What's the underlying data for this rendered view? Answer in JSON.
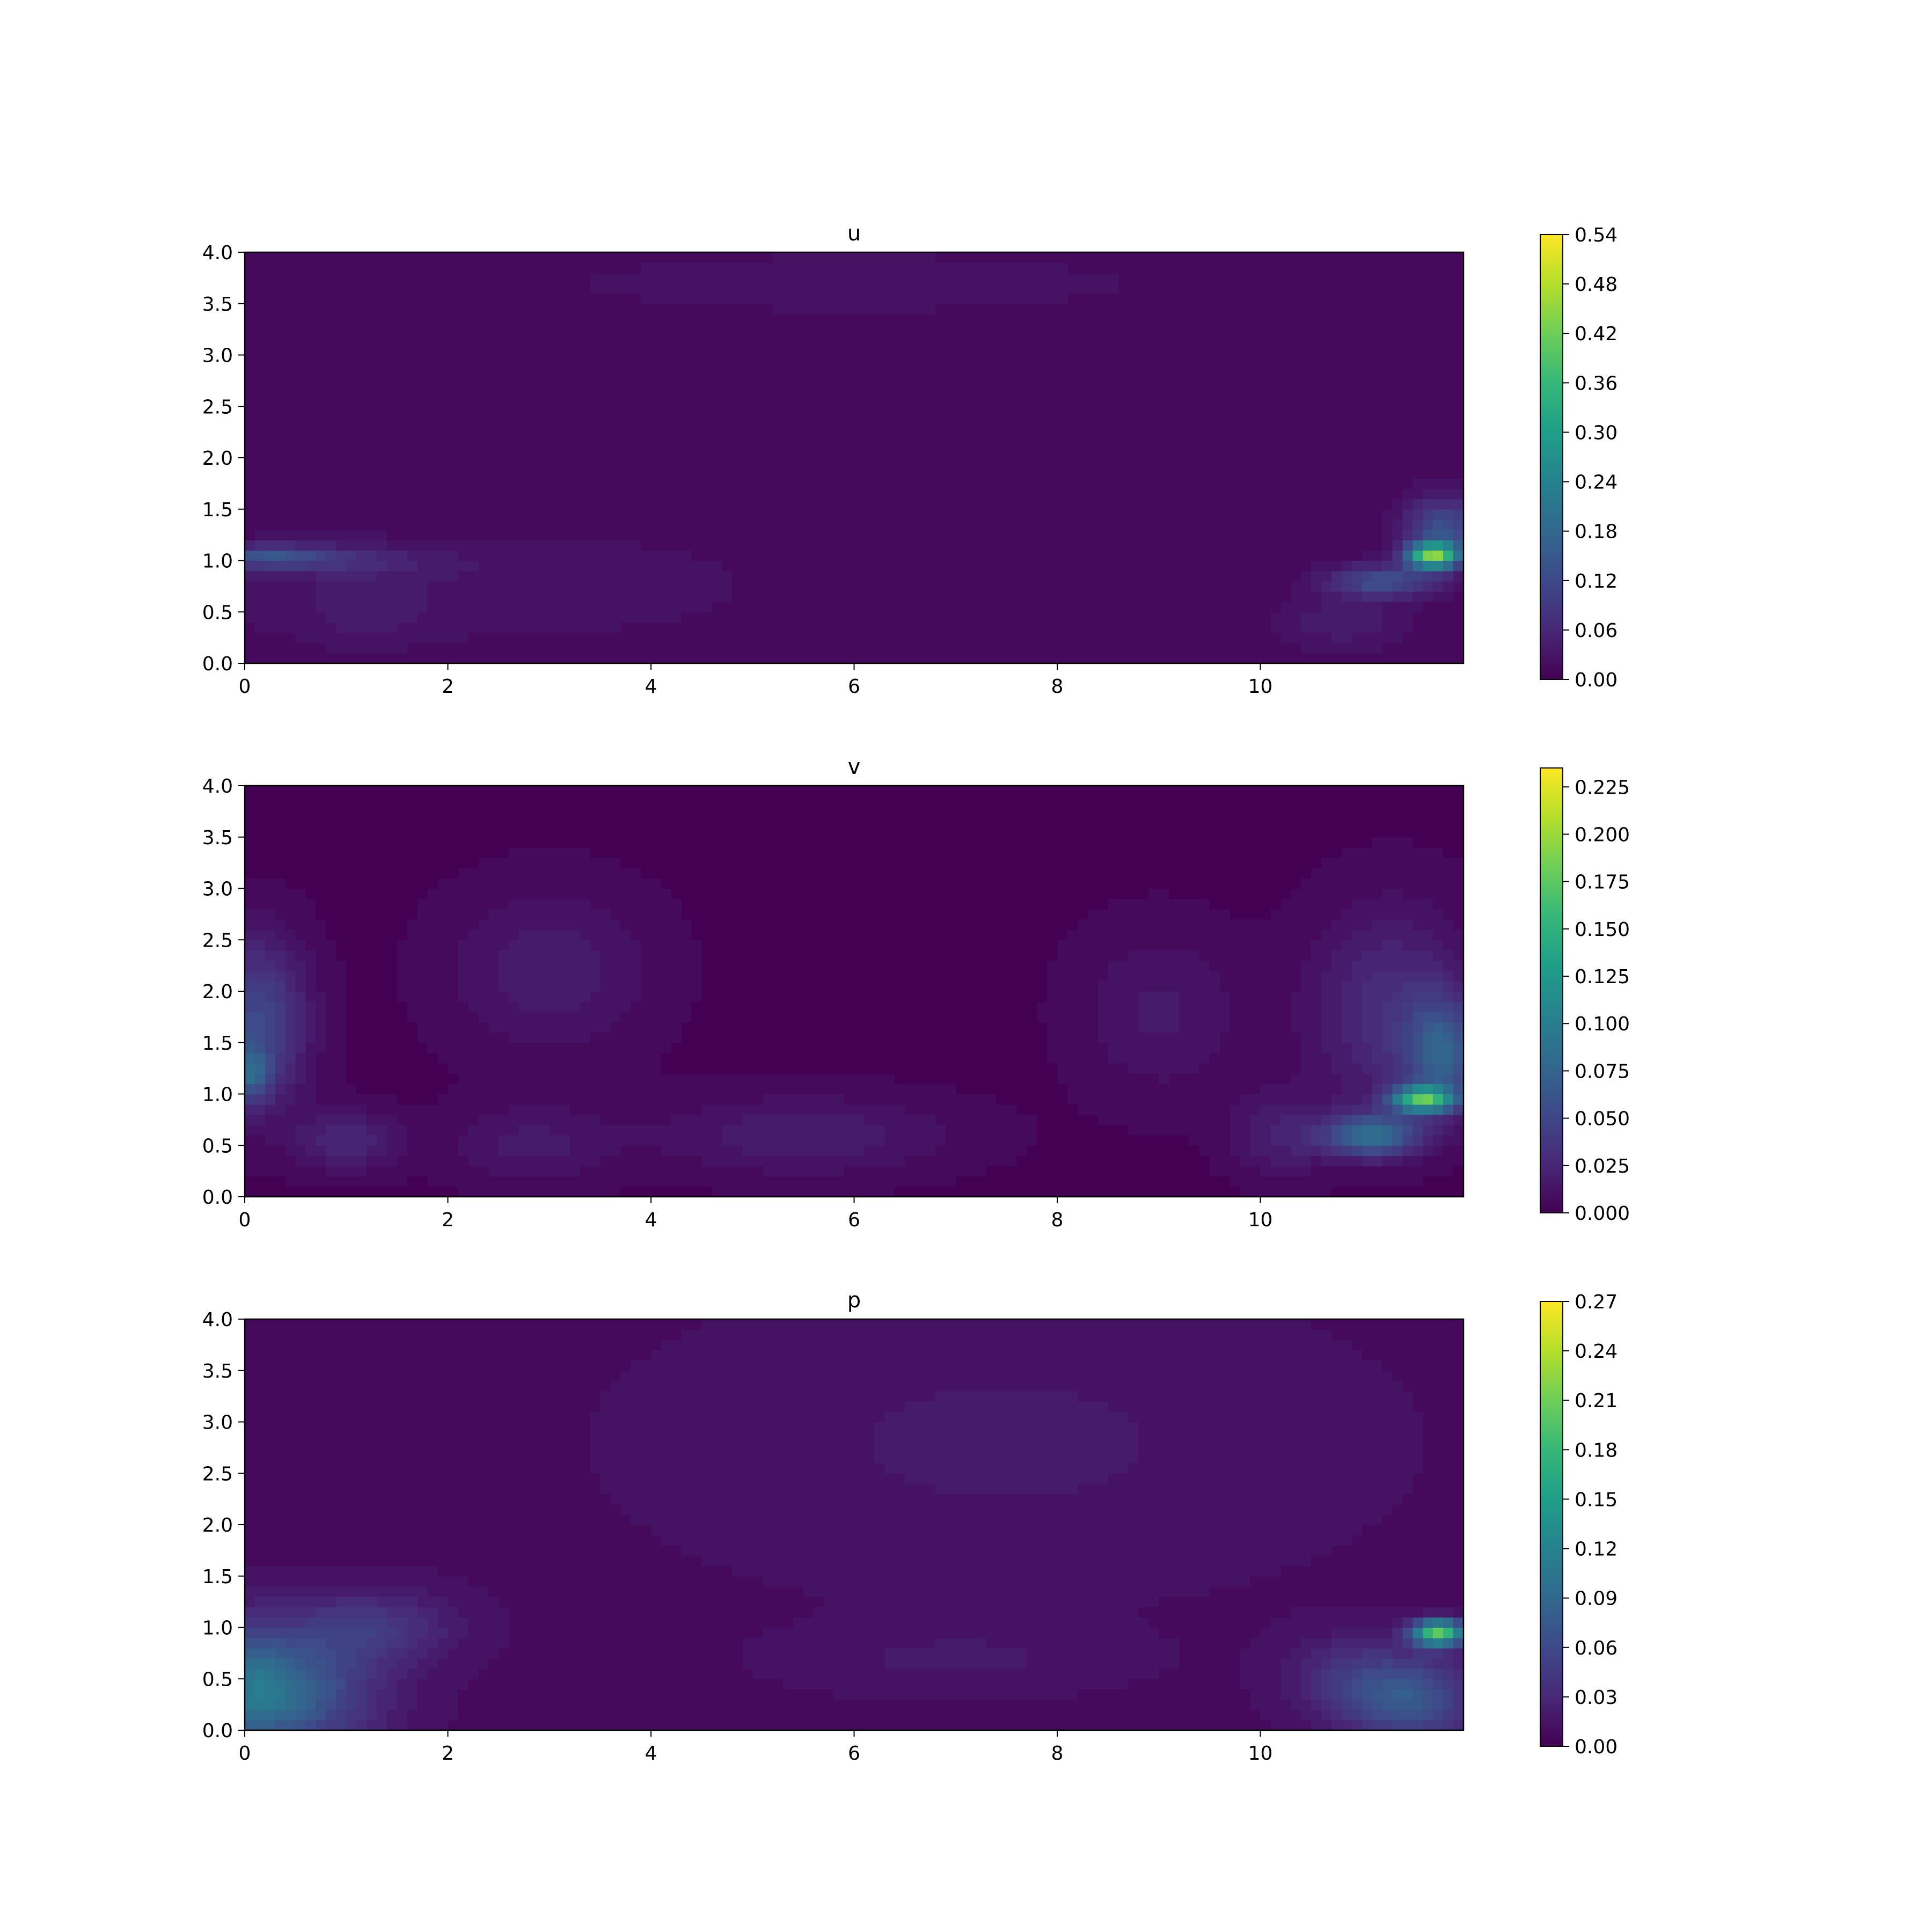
{
  "colormap": [
    "#440154",
    "#482878",
    "#3e4989",
    "#31688e",
    "#26828e",
    "#1f9e89",
    "#35b779",
    "#6ece58",
    "#b5de2b",
    "#fde725"
  ],
  "chart_data": [
    {
      "type": "heatmap",
      "title": "u",
      "xlim": [
        0,
        12
      ],
      "ylim": [
        0,
        4
      ],
      "xticks": [
        "0",
        "2",
        "4",
        "6",
        "8",
        "10"
      ],
      "yticks": [
        "0.0",
        "0.5",
        "1.0",
        "1.5",
        "2.0",
        "2.5",
        "3.0",
        "3.5",
        "4.0"
      ],
      "colorbar": {
        "range": [
          0,
          0.54
        ],
        "ticks": [
          "0.00",
          "0.06",
          "0.12",
          "0.18",
          "0.24",
          "0.30",
          "0.36",
          "0.42",
          "0.48",
          "0.54"
        ]
      },
      "field": {
        "background": 0.02,
        "features": [
          {
            "x": 6.0,
            "y": 3.7,
            "sx": 3.0,
            "sy": 0.3,
            "a": 0.015
          },
          {
            "x": 1.5,
            "y": 0.7,
            "sx": 2.5,
            "sy": 0.5,
            "a": 0.015
          },
          {
            "x": 3.5,
            "y": 0.8,
            "sx": 1.5,
            "sy": 0.4,
            "a": 0.01
          },
          {
            "x": 0.2,
            "y": 1.05,
            "sx": 0.6,
            "sy": 0.1,
            "a": 0.09
          },
          {
            "x": 0.8,
            "y": 1.0,
            "sx": 1.0,
            "sy": 0.15,
            "a": 0.05
          },
          {
            "x": 11.7,
            "y": 1.05,
            "sx": 0.25,
            "sy": 0.12,
            "a": 0.38
          },
          {
            "x": 11.2,
            "y": 0.8,
            "sx": 0.5,
            "sy": 0.15,
            "a": 0.12
          },
          {
            "x": 11.8,
            "y": 1.3,
            "sx": 0.35,
            "sy": 0.3,
            "a": 0.12
          },
          {
            "x": 10.8,
            "y": 0.4,
            "sx": 0.6,
            "sy": 0.25,
            "a": 0.03
          },
          {
            "x": 1.2,
            "y": 0.5,
            "sx": 0.5,
            "sy": 0.3,
            "a": 0.02
          }
        ]
      }
    },
    {
      "type": "heatmap",
      "title": "v",
      "xlim": [
        0,
        12
      ],
      "ylim": [
        0,
        4
      ],
      "xticks": [
        "0",
        "2",
        "4",
        "6",
        "8",
        "10"
      ],
      "yticks": [
        "0.0",
        "0.5",
        "1.0",
        "1.5",
        "2.0",
        "2.5",
        "3.0",
        "3.5",
        "4.0"
      ],
      "colorbar": {
        "range": [
          0,
          0.235
        ],
        "ticks": [
          "0.000",
          "0.025",
          "0.050",
          "0.075",
          "0.100",
          "0.125",
          "0.150",
          "0.175",
          "0.200",
          "0.225"
        ]
      },
      "field": {
        "background": 0.004,
        "features": [
          {
            "x": 0.1,
            "y": 1.7,
            "sx": 0.5,
            "sy": 0.8,
            "a": 0.05
          },
          {
            "x": 0.05,
            "y": 1.2,
            "sx": 0.2,
            "sy": 0.25,
            "a": 0.05
          },
          {
            "x": 1.0,
            "y": 0.55,
            "sx": 0.5,
            "sy": 0.3,
            "a": 0.025
          },
          {
            "x": 3.0,
            "y": 2.2,
            "sx": 1.0,
            "sy": 0.8,
            "a": 0.018
          },
          {
            "x": 5.5,
            "y": 0.6,
            "sx": 1.5,
            "sy": 0.4,
            "a": 0.018
          },
          {
            "x": 2.8,
            "y": 0.5,
            "sx": 0.8,
            "sy": 0.4,
            "a": 0.015
          },
          {
            "x": 11.6,
            "y": 0.95,
            "sx": 0.3,
            "sy": 0.12,
            "a": 0.15
          },
          {
            "x": 11.1,
            "y": 0.6,
            "sx": 0.45,
            "sy": 0.2,
            "a": 0.08
          },
          {
            "x": 11.8,
            "y": 1.4,
            "sx": 0.35,
            "sy": 0.5,
            "a": 0.06
          },
          {
            "x": 11.3,
            "y": 1.8,
            "sx": 0.8,
            "sy": 1.0,
            "a": 0.03
          },
          {
            "x": 9.0,
            "y": 1.8,
            "sx": 0.8,
            "sy": 0.8,
            "a": 0.015
          },
          {
            "x": 10.2,
            "y": 0.6,
            "sx": 0.5,
            "sy": 0.4,
            "a": 0.02
          }
        ]
      }
    },
    {
      "type": "heatmap",
      "title": "p",
      "xlim": [
        0,
        12
      ],
      "ylim": [
        0,
        4
      ],
      "xticks": [
        "0",
        "2",
        "4",
        "6",
        "8",
        "10"
      ],
      "yticks": [
        "0.0",
        "0.5",
        "1.0",
        "1.5",
        "2.0",
        "2.5",
        "3.0",
        "3.5",
        "4.0"
      ],
      "colorbar": {
        "range": [
          0,
          0.27
        ],
        "ticks": [
          "0.00",
          "0.03",
          "0.06",
          "0.09",
          "0.12",
          "0.15",
          "0.18",
          "0.21",
          "0.24",
          "0.27"
        ]
      },
      "field": {
        "background": 0.012,
        "features": [
          {
            "x": 0.3,
            "y": 0.35,
            "sx": 0.9,
            "sy": 0.55,
            "a": 0.08
          },
          {
            "x": 0.05,
            "y": 0.5,
            "sx": 0.4,
            "sy": 0.6,
            "a": 0.03
          },
          {
            "x": 1.2,
            "y": 1.0,
            "sx": 0.8,
            "sy": 0.35,
            "a": 0.035
          },
          {
            "x": 11.75,
            "y": 0.95,
            "sx": 0.25,
            "sy": 0.12,
            "a": 0.19
          },
          {
            "x": 11.5,
            "y": 0.3,
            "sx": 0.6,
            "sy": 0.4,
            "a": 0.06
          },
          {
            "x": 10.9,
            "y": 0.5,
            "sx": 0.6,
            "sy": 0.4,
            "a": 0.03
          },
          {
            "x": 7.5,
            "y": 2.8,
            "sx": 3.0,
            "sy": 1.2,
            "a": 0.01
          },
          {
            "x": 7.0,
            "y": 0.7,
            "sx": 1.5,
            "sy": 0.3,
            "a": 0.01
          }
        ]
      }
    }
  ]
}
